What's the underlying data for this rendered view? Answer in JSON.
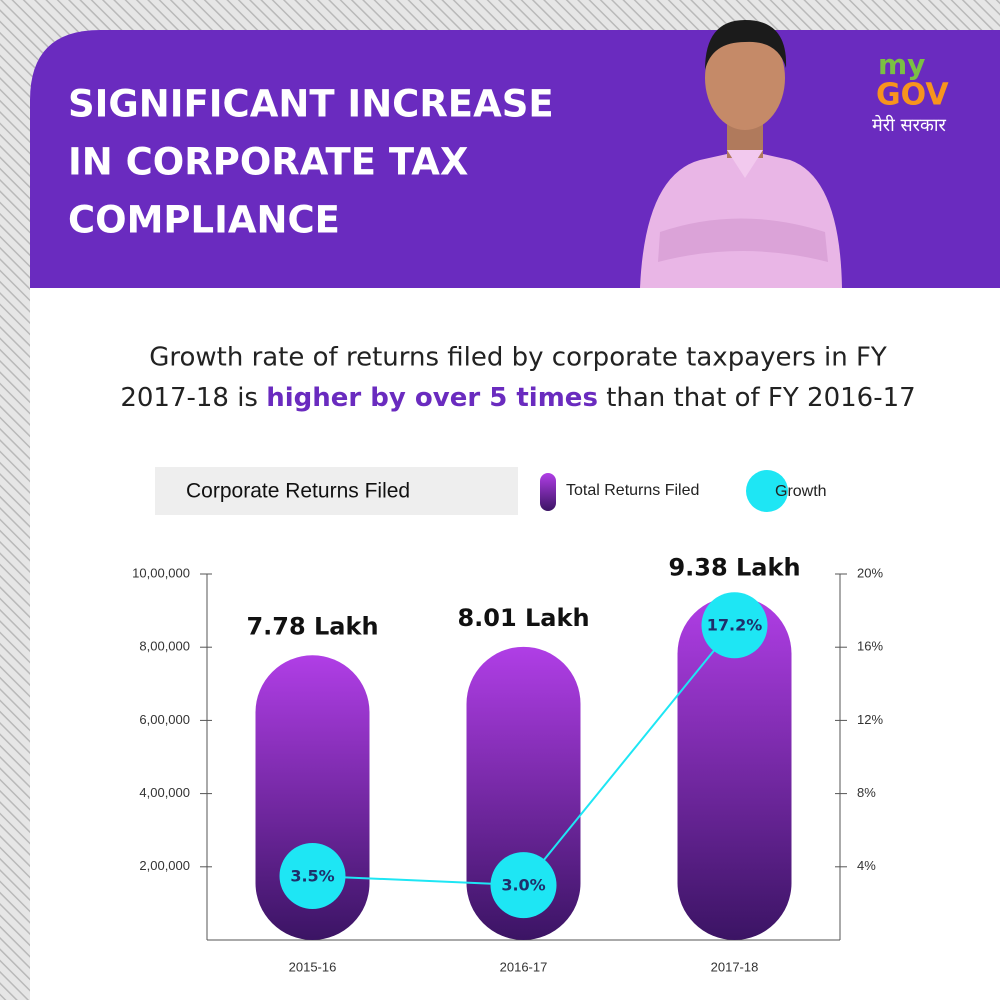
{
  "header": {
    "title": [
      "SIGNIFICANT INCREASE",
      "IN CORPORATE TAX",
      "COMPLIANCE"
    ],
    "logo": {
      "my": "my",
      "gov": "GOV",
      "tagline": "मेरी सरकार"
    }
  },
  "subtitle": {
    "line1": "Growth rate of returns filed by corporate taxpayers in FY",
    "line2_start": "2017-18 is",
    "highlight": "higher by over 5 times",
    "line2_end": "than that of FY 2016-17"
  },
  "chart_data": {
    "type": "bar",
    "title": "Corporate Returns Filed",
    "categories": [
      "2015-16",
      "2016-17",
      "2017-18"
    ],
    "series": [
      {
        "name": "Total Returns Filed",
        "type": "bar",
        "color": "#b03ee6",
        "values": [
          778000,
          801000,
          938000
        ],
        "value_labels": [
          "7.78 Lakh",
          "8.01 Lakh",
          "9.38 Lakh"
        ]
      },
      {
        "name": "Growth",
        "type": "line",
        "axis": "y2",
        "color": "#1ee6f4",
        "values": [
          3.5,
          3.0,
          17.2
        ],
        "value_labels": [
          "3.5%",
          "3.0%",
          "17.2%"
        ]
      }
    ],
    "ylim": [
      0,
      1000000
    ],
    "yticks": [
      {
        "value": 200000,
        "label": "2,00,000"
      },
      {
        "value": 400000,
        "label": "4,00,000"
      },
      {
        "value": 600000,
        "label": "6,00,000"
      },
      {
        "value": 800000,
        "label": "8,00,000"
      },
      {
        "value": 1000000,
        "label": "10,00,000"
      }
    ],
    "y2lim": [
      0,
      20
    ],
    "y2ticks": [
      {
        "value": 4,
        "label": "4%"
      },
      {
        "value": 8,
        "label": "8%"
      },
      {
        "value": 12,
        "label": "12%"
      },
      {
        "value": 16,
        "label": "16%"
      },
      {
        "value": 20,
        "label": "20%"
      }
    ]
  }
}
